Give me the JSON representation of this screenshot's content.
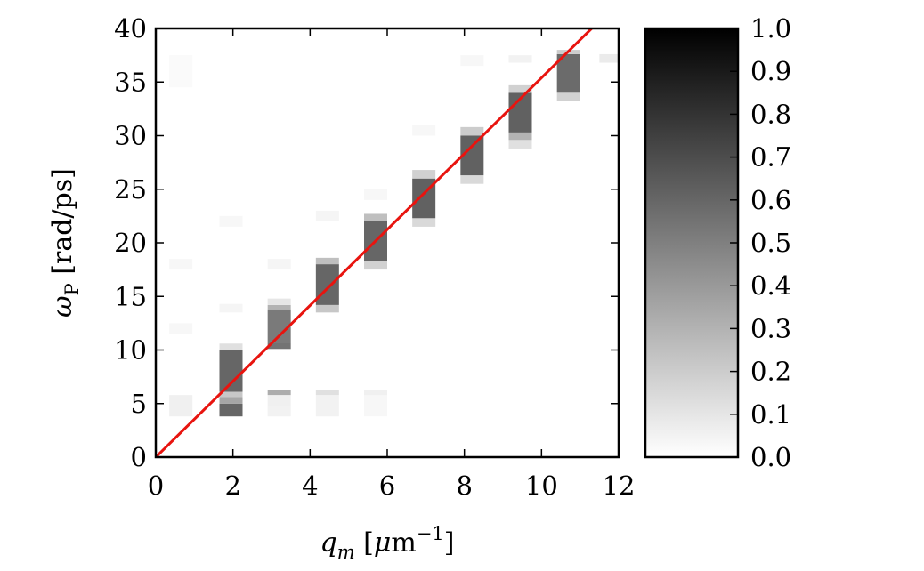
{
  "chart_data": {
    "type": "heatmap",
    "title": "",
    "xlabel": "q_m [μm⁻¹]",
    "xlabel_parts": {
      "var": "q",
      "sub": "m",
      "unit_open": " [",
      "mu": "μ",
      "unit": "m",
      "sup": "−1",
      "unit_close": "]"
    },
    "ylabel": "ω_P [rad/ps]",
    "ylabel_parts": {
      "var": "ω",
      "sub": "P",
      "unit": " [rad/ps]"
    },
    "xlim": [
      0,
      12
    ],
    "ylim": [
      0,
      40
    ],
    "xticks": [
      0,
      2,
      4,
      6,
      8,
      10,
      12
    ],
    "yticks": [
      0,
      5,
      10,
      15,
      20,
      25,
      30,
      35,
      40
    ],
    "colormap": "gray_r",
    "colorbar": {
      "range": [
        0.0,
        1.0
      ],
      "ticks": [
        "0.0",
        "0.1",
        "0.2",
        "0.3",
        "0.4",
        "0.5",
        "0.6",
        "0.7",
        "0.8",
        "0.9",
        "1.0"
      ]
    },
    "line": {
      "color": "#e8140f",
      "x": [
        0,
        11.3
      ],
      "y": [
        0,
        40
      ]
    },
    "column_width": 0.6,
    "columns": [
      {
        "q": 0.65,
        "cells": [
          [
            3.8,
            5.8,
            0.06
          ],
          [
            11.5,
            12.5,
            0.03
          ],
          [
            17.5,
            18.5,
            0.03
          ],
          [
            34.5,
            37.5,
            0.02
          ]
        ]
      },
      {
        "q": 1.95,
        "cells": [
          [
            3.8,
            5.0,
            0.6
          ],
          [
            5.0,
            5.6,
            0.35
          ],
          [
            5.6,
            6.1,
            0.22
          ],
          [
            6.1,
            10.0,
            0.6
          ],
          [
            10.0,
            10.6,
            0.12
          ],
          [
            13.5,
            14.3,
            0.04
          ],
          [
            21.5,
            22.5,
            0.03
          ]
        ]
      },
      {
        "q": 3.2,
        "cells": [
          [
            3.8,
            4.8,
            0.05
          ],
          [
            4.8,
            5.8,
            0.06
          ],
          [
            5.8,
            6.3,
            0.32
          ],
          [
            10.1,
            10.7,
            0.55
          ],
          [
            10.7,
            13.8,
            0.52
          ],
          [
            13.8,
            14.2,
            0.3
          ],
          [
            14.2,
            14.8,
            0.1
          ],
          [
            17.5,
            18.5,
            0.04
          ]
        ]
      },
      {
        "q": 4.45,
        "cells": [
          [
            3.8,
            5.8,
            0.05
          ],
          [
            5.8,
            6.3,
            0.12
          ],
          [
            13.5,
            14.2,
            0.22
          ],
          [
            14.2,
            18.0,
            0.6
          ],
          [
            18.0,
            18.6,
            0.25
          ],
          [
            22.0,
            23.0,
            0.04
          ]
        ]
      },
      {
        "q": 5.7,
        "cells": [
          [
            3.8,
            5.8,
            0.03
          ],
          [
            5.8,
            6.3,
            0.06
          ],
          [
            17.5,
            18.3,
            0.18
          ],
          [
            18.3,
            22.0,
            0.6
          ],
          [
            22.0,
            22.7,
            0.25
          ],
          [
            24.0,
            25.0,
            0.03
          ]
        ]
      },
      {
        "q": 6.95,
        "cells": [
          [
            21.5,
            22.3,
            0.15
          ],
          [
            22.3,
            26.0,
            0.62
          ],
          [
            26.0,
            26.8,
            0.18
          ],
          [
            30.0,
            31.0,
            0.03
          ]
        ]
      },
      {
        "q": 8.2,
        "cells": [
          [
            25.5,
            26.3,
            0.15
          ],
          [
            26.3,
            30.0,
            0.62
          ],
          [
            30.0,
            30.8,
            0.2
          ],
          [
            36.5,
            37.5,
            0.03
          ]
        ]
      },
      {
        "q": 9.45,
        "cells": [
          [
            28.8,
            29.6,
            0.12
          ],
          [
            29.6,
            30.3,
            0.3
          ],
          [
            30.3,
            34.0,
            0.62
          ],
          [
            34.0,
            34.7,
            0.18
          ],
          [
            36.8,
            37.5,
            0.05
          ]
        ]
      },
      {
        "q": 10.7,
        "cells": [
          [
            33.2,
            34.0,
            0.18
          ],
          [
            34.0,
            37.6,
            0.58
          ],
          [
            37.6,
            38.0,
            0.2
          ]
        ]
      },
      {
        "q": 11.8,
        "cells": [
          [
            36.8,
            37.6,
            0.08
          ]
        ]
      }
    ]
  }
}
